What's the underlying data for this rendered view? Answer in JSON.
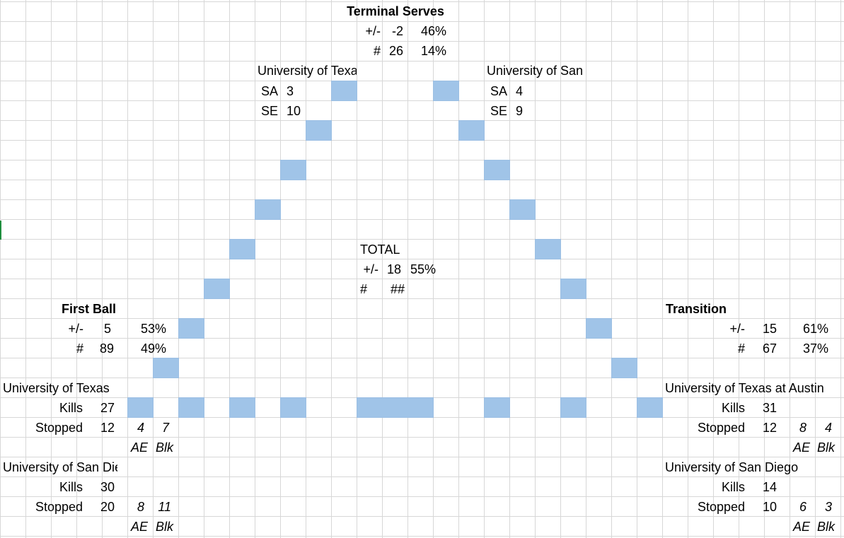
{
  "terminal_serves": {
    "title": "Terminal Serves",
    "pm_label": "+/-",
    "pm_value": "-2",
    "pm_pct": "46%",
    "count_label": "#",
    "count_value": "26",
    "count_pct": "14%"
  },
  "team_a_serve": {
    "team": "University of Texas at Austin",
    "sa_label": "SA",
    "sa_value": "3",
    "se_label": "SE",
    "se_value": "10"
  },
  "team_b_serve": {
    "team": "University of San Diego",
    "sa_label": "SA",
    "sa_value": "4",
    "se_label": "SE",
    "se_value": "9"
  },
  "total": {
    "title": "TOTAL",
    "pm_label": "+/-",
    "pm_value": "18",
    "pm_pct": "55%",
    "count_label": "#",
    "count_value": "##"
  },
  "first_ball": {
    "title": "First Ball",
    "pm_label": "+/-",
    "pm_value": "5",
    "pm_pct": "53%",
    "count_label": "#",
    "count_value": "89",
    "count_pct": "49%",
    "team_a": {
      "name": "University of Texas",
      "kills_label": "Kills",
      "kills": "27",
      "stopped_label": "Stopped",
      "stopped": "12",
      "ae": "4",
      "blk": "7",
      "ae_label": "AE",
      "blk_label": "Blk"
    },
    "team_b": {
      "name": "University of San Diego",
      "kills_label": "Kills",
      "kills": "30",
      "stopped_label": "Stopped",
      "stopped": "20",
      "ae": "8",
      "blk": "11",
      "ae_label": "AE",
      "blk_label": "Blk"
    }
  },
  "transition": {
    "title": "Transition",
    "pm_label": "+/-",
    "pm_value": "15",
    "pm_pct": "61%",
    "count_label": "#",
    "count_value": "67",
    "count_pct": "37%",
    "team_a": {
      "name": "University of Texas at Austin",
      "kills_label": "Kills",
      "kills": "31",
      "stopped_label": "Stopped",
      "stopped": "12",
      "ae": "8",
      "blk": "4",
      "ae_label": "AE",
      "blk_label": "Blk"
    },
    "team_b": {
      "name": "University of San Diego",
      "kills_label": "Kills",
      "kills": "14",
      "stopped_label": "Stopped",
      "stopped": "10",
      "ae": "6",
      "blk": "3",
      "ae_label": "AE",
      "blk_label": "Blk"
    }
  },
  "colors": {
    "block_fill": "#a0c4e8",
    "gridline": "#d7d7d7",
    "selection_marker": "#1e8e3e"
  }
}
